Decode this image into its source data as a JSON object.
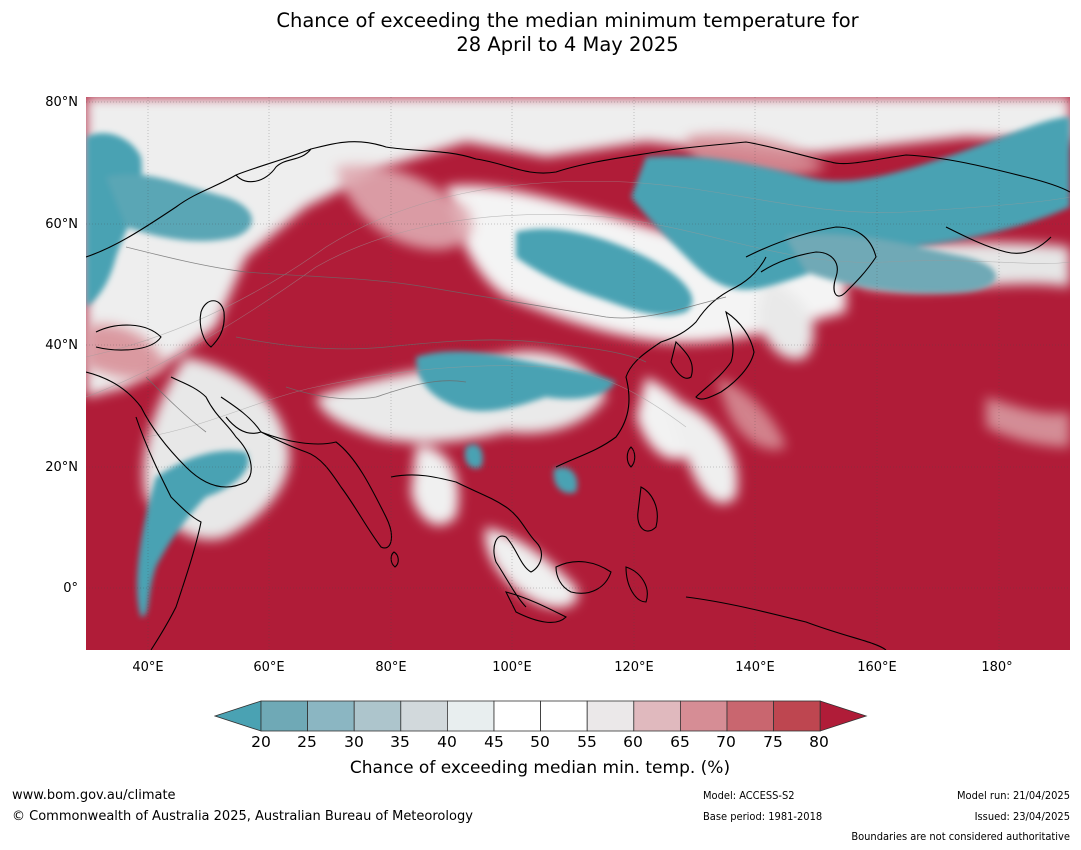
{
  "title": {
    "line1": "Chance of exceeding the median minimum temperature for",
    "line2": "28 April to 4 May 2025"
  },
  "axes": {
    "lat_labels": [
      "80°N",
      "60°N",
      "40°N",
      "20°N",
      "0°"
    ],
    "lon_labels": [
      "40°E",
      "60°E",
      "80°E",
      "100°E",
      "120°E",
      "140°E",
      "160°E",
      "180°"
    ]
  },
  "colorbar": {
    "ticks": [
      "20",
      "25",
      "30",
      "35",
      "40",
      "45",
      "50",
      "55",
      "60",
      "65",
      "70",
      "75",
      "80"
    ],
    "colors": [
      "#4aa2b3",
      "#6fa9b6",
      "#8bb6c2",
      "#adc5cc",
      "#d2d9dc",
      "#e8eeef",
      "#ffffff",
      "#ffffff",
      "#ebe8e9",
      "#e0b9be",
      "#d68d95",
      "#c9666f",
      "#be4650",
      "#b01c38"
    ],
    "title": "Chance of exceeding median min. temp. (%)"
  },
  "colors": {
    "warm": "#b01c38",
    "cool": "#4aa2b3",
    "neutral": "#eeeeee"
  },
  "footer": {
    "website": "www.bom.gov.au/climate",
    "copyright": "© Commonwealth of Australia 2025, Australian Bureau of Meteorology",
    "model": "Model: ACCESS-S2",
    "base_period": "Base period: 1981-2018",
    "model_run": "Model run: 21/04/2025",
    "issued": "Issued: 23/04/2025",
    "disclaimer": "Boundaries are not considered authoritative"
  }
}
